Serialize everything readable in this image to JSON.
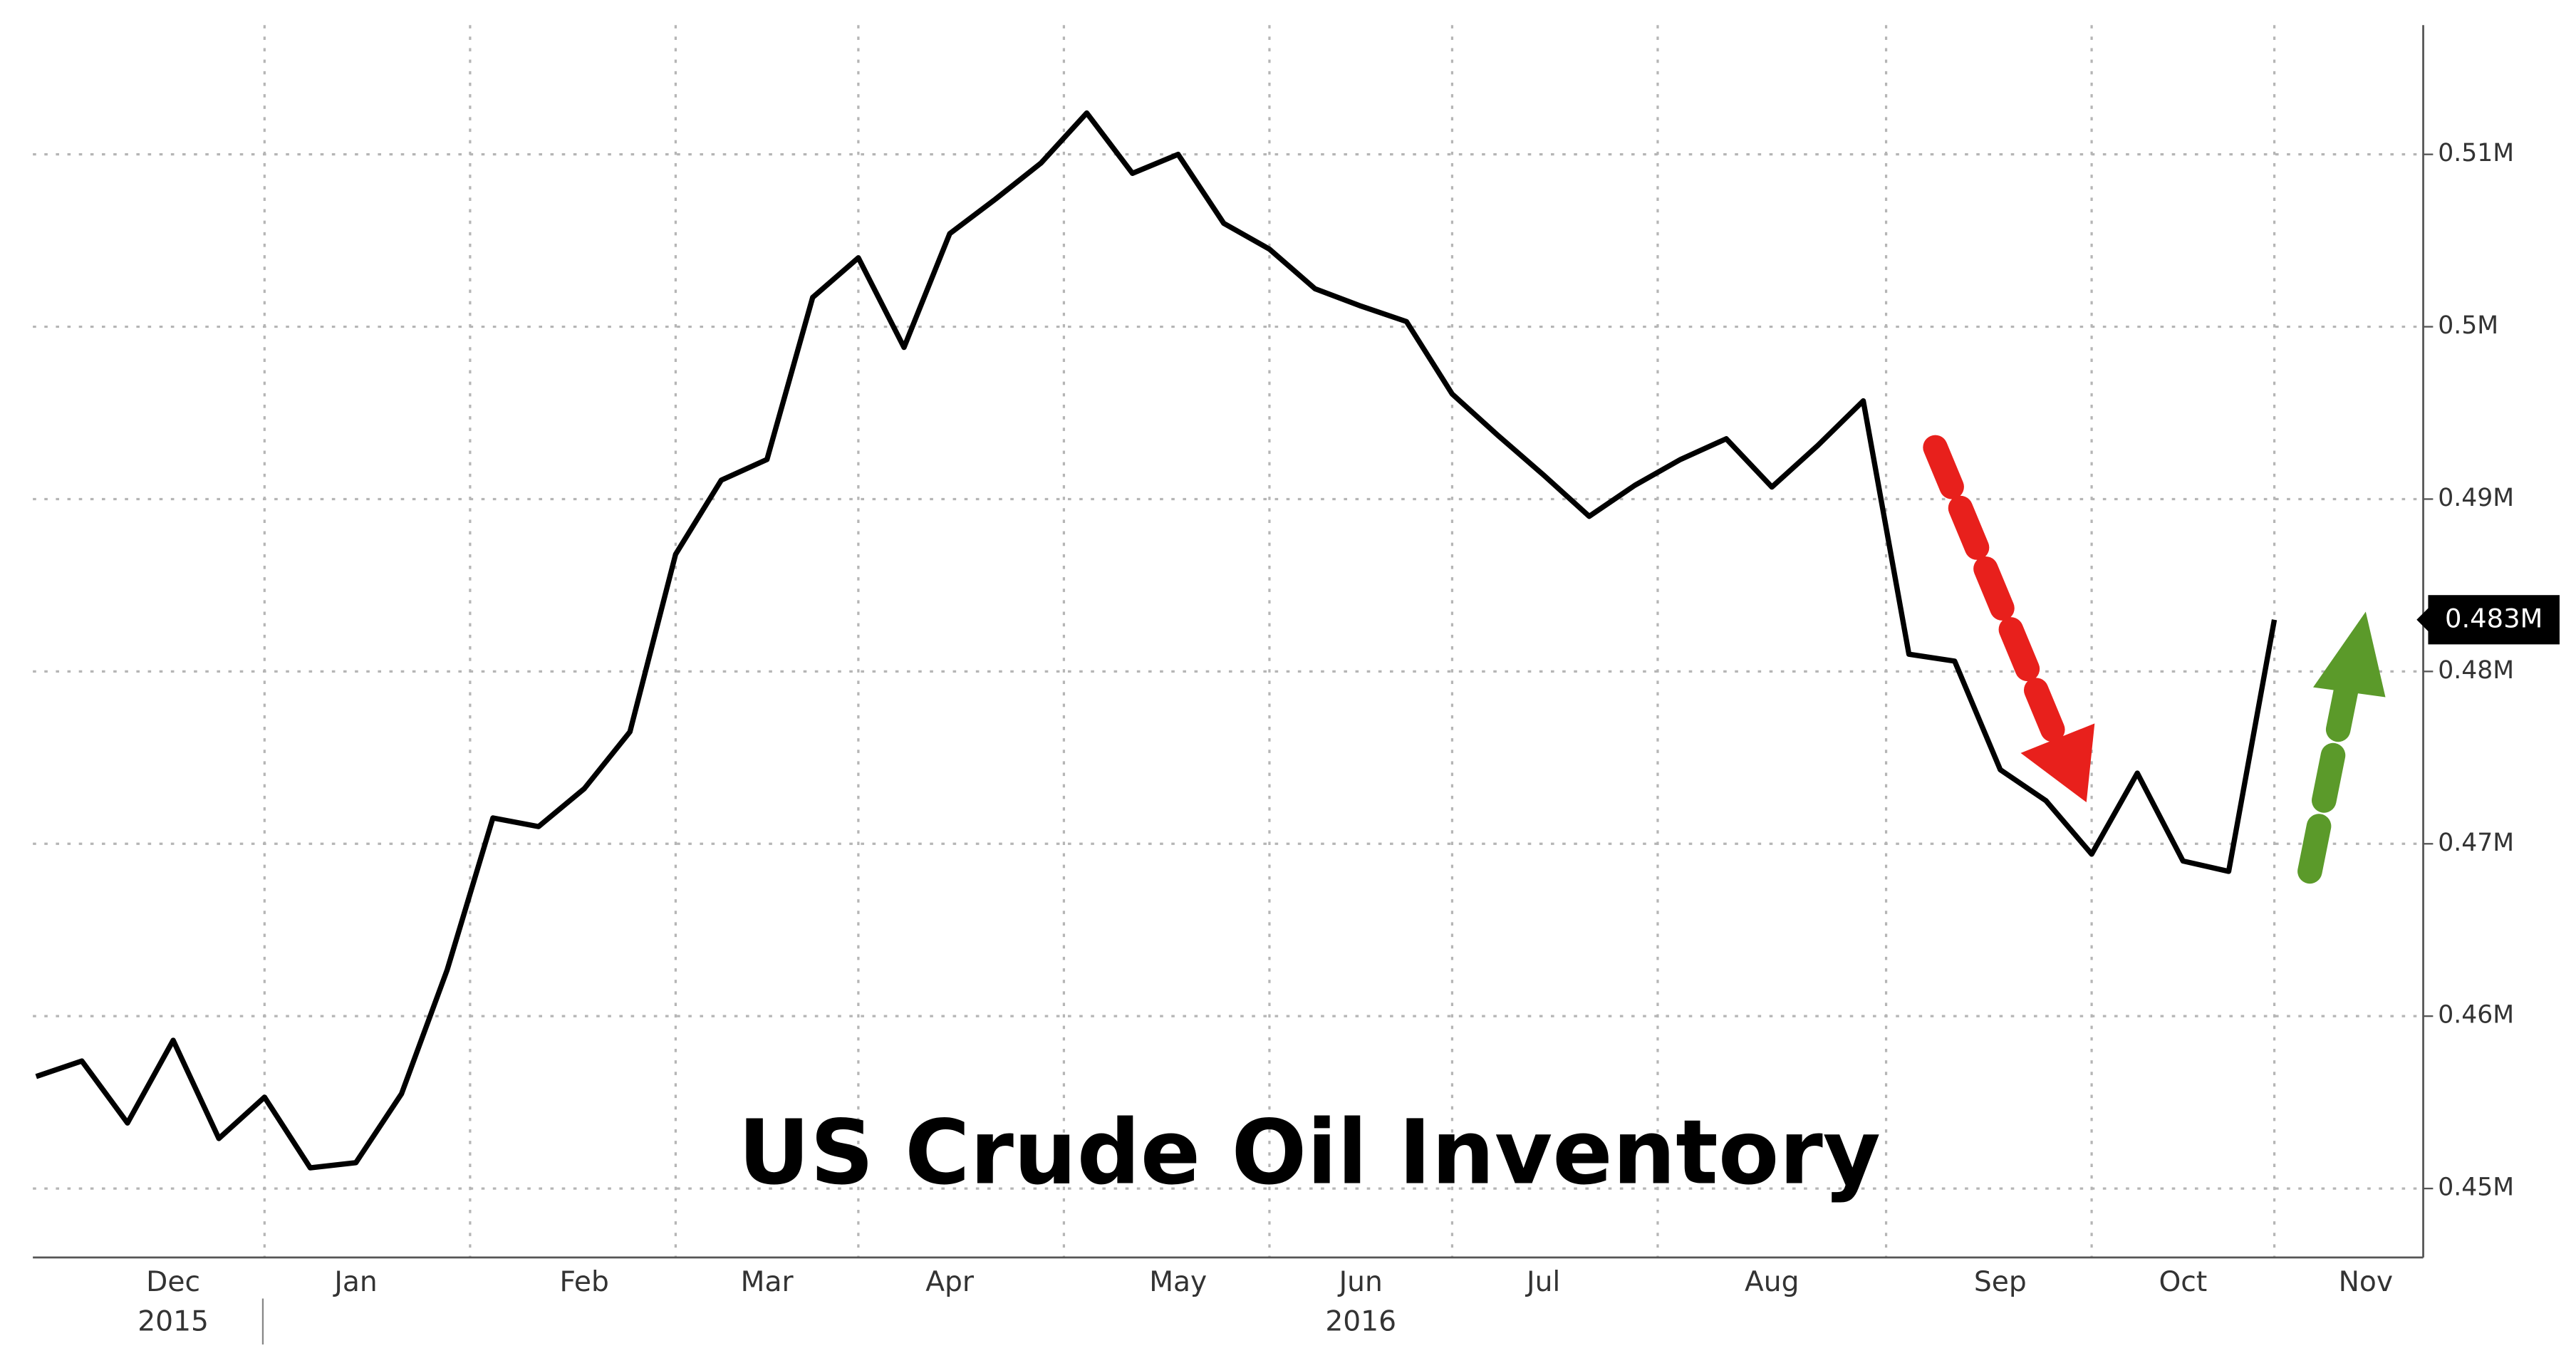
{
  "chart_data": {
    "type": "line",
    "title": "US Crude Oil Inventory",
    "categories": [
      null,
      null,
      null,
      "Dec",
      null,
      null,
      null,
      "Jan",
      null,
      null,
      null,
      null,
      "Feb",
      null,
      null,
      null,
      "Mar",
      null,
      null,
      null,
      "Apr",
      null,
      null,
      null,
      null,
      "May",
      null,
      null,
      null,
      "Jun",
      null,
      null,
      null,
      "Jul",
      null,
      null,
      null,
      null,
      "Aug",
      null,
      null,
      null,
      null,
      "Sep",
      null,
      null,
      null,
      "Oct",
      null,
      null,
      null,
      "Nov"
    ],
    "category_years": [
      null,
      null,
      null,
      "2015",
      null,
      null,
      null,
      null,
      null,
      null,
      null,
      null,
      null,
      null,
      null,
      null,
      null,
      null,
      null,
      null,
      null,
      null,
      null,
      null,
      null,
      null,
      null,
      null,
      null,
      "2016",
      null,
      null,
      null,
      null,
      null,
      null,
      null,
      null,
      null,
      null,
      null,
      null,
      null,
      null,
      null,
      null,
      null,
      null,
      null,
      null,
      null,
      null
    ],
    "series": [
      {
        "color": "#000000",
        "values": [
          456500,
          457400,
          453800,
          458600,
          452900,
          455300,
          451200,
          451500,
          455500,
          462700,
          471500,
          471000,
          473200,
          476500,
          486800,
          491100,
          492300,
          501700,
          504000,
          498800,
          505400,
          507400,
          509500,
          512400,
          508900,
          510000,
          506000,
          504500,
          502200,
          501200,
          500300,
          496100,
          493700,
          491400,
          489000,
          490800,
          492300,
          493500,
          490700,
          493100,
          495700,
          481000,
          480600,
          474300,
          472500,
          469400,
          474100,
          469000,
          468400,
          483000,
          null,
          null
        ],
        "value_labels": [
          null,
          null,
          null,
          null,
          null,
          null,
          null,
          null,
          null,
          null,
          null,
          null,
          null,
          null,
          null,
          null,
          null,
          null,
          null,
          null,
          null,
          null,
          null,
          null,
          null,
          null,
          null,
          null,
          null,
          null,
          null,
          null,
          null,
          null,
          null,
          null,
          null,
          null,
          null,
          null,
          null,
          null,
          null,
          null,
          null,
          null,
          null,
          null,
          null,
          "0.483M",
          null,
          null
        ]
      }
    ],
    "ylim": [
      446000,
      517500
    ],
    "yticks": [
      {
        "value": 450000,
        "label": "0.45M"
      },
      {
        "value": 460000,
        "label": "0.46M"
      },
      {
        "value": 470000,
        "label": "0.47M"
      },
      {
        "value": 480000,
        "label": "0.48M"
      },
      {
        "value": 490000,
        "label": "0.49M"
      },
      {
        "value": 500000,
        "label": "0.5M"
      },
      {
        "value": 510000,
        "label": "0.51M"
      }
    ],
    "grid": true
  }
}
